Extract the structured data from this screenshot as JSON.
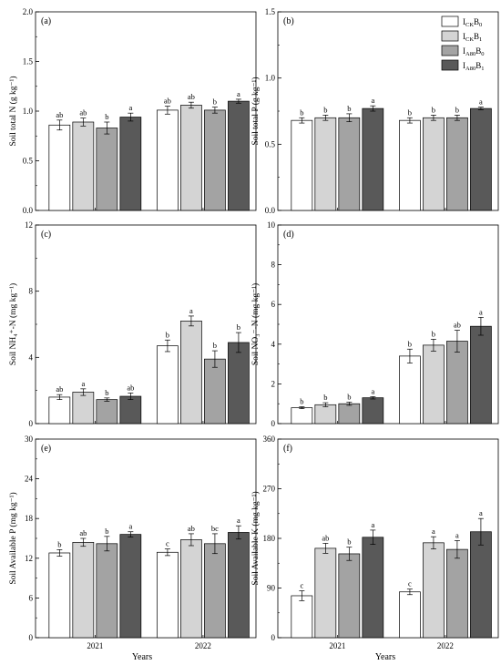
{
  "colors": [
    "#ffffff",
    "#d4d4d4",
    "#a3a3a3",
    "#595959"
  ],
  "legend": {
    "labels": [
      {
        "main": "I",
        "sub": "CK",
        "main2": "B",
        "sub2": "0"
      },
      {
        "main": "I",
        "sub": "CK",
        "main2": "B",
        "sub2": "1"
      },
      {
        "main": "I",
        "sub": "A80",
        "main2": "B",
        "sub2": "0"
      },
      {
        "main": "I",
        "sub": "A80",
        "main2": "B",
        "sub2": "1"
      }
    ]
  },
  "x_axis_title": "Years",
  "chart_data": [
    {
      "type": "bar",
      "panel_label": "(a)",
      "ylabel": "Soil total N (g kg⁻¹)",
      "ylim": [
        0,
        2.0
      ],
      "yticks": [
        "0.0",
        "0.5",
        "1.0",
        "1.5",
        "2.0"
      ],
      "categories": [
        "2021",
        "2022"
      ],
      "series": [
        {
          "values": [
            0.86,
            1.01
          ],
          "errors": [
            0.05,
            0.04
          ],
          "letters": [
            "ab",
            "ab"
          ]
        },
        {
          "values": [
            0.89,
            1.06
          ],
          "errors": [
            0.04,
            0.03
          ],
          "letters": [
            "ab",
            "ab"
          ]
        },
        {
          "values": [
            0.83,
            1.01
          ],
          "errors": [
            0.06,
            0.03
          ],
          "letters": [
            "b",
            "b"
          ]
        },
        {
          "values": [
            0.94,
            1.1
          ],
          "errors": [
            0.04,
            0.02
          ],
          "letters": [
            "a",
            "a"
          ]
        }
      ]
    },
    {
      "type": "bar",
      "panel_label": "(b)",
      "ylabel": "Soil total P (g kg⁻¹)",
      "ylim": [
        0,
        1.5
      ],
      "yticks": [
        "0.0",
        "0.5",
        "1.0",
        "1.5"
      ],
      "categories": [
        "2021",
        "2022"
      ],
      "series": [
        {
          "values": [
            0.68,
            0.68
          ],
          "errors": [
            0.02,
            0.02
          ],
          "letters": [
            "b",
            "b"
          ]
        },
        {
          "values": [
            0.7,
            0.7
          ],
          "errors": [
            0.02,
            0.02
          ],
          "letters": [
            "b",
            "b"
          ]
        },
        {
          "values": [
            0.7,
            0.7
          ],
          "errors": [
            0.03,
            0.02
          ],
          "letters": [
            "b",
            "b"
          ]
        },
        {
          "values": [
            0.77,
            0.77
          ],
          "errors": [
            0.02,
            0.01
          ],
          "letters": [
            "a",
            "a"
          ]
        }
      ]
    },
    {
      "type": "bar",
      "panel_label": "(c)",
      "ylabel": "Soil NH₄⁺-N (mg kg⁻¹)",
      "ylim": [
        0,
        12
      ],
      "yticks": [
        "0",
        "4",
        "8",
        "12"
      ],
      "categories": [
        "2021",
        "2022"
      ],
      "series": [
        {
          "values": [
            1.6,
            4.7
          ],
          "errors": [
            0.15,
            0.35
          ],
          "letters": [
            "ab",
            "b"
          ]
        },
        {
          "values": [
            1.9,
            6.2
          ],
          "errors": [
            0.2,
            0.3
          ],
          "letters": [
            "a",
            "a"
          ]
        },
        {
          "values": [
            1.45,
            3.9
          ],
          "errors": [
            0.1,
            0.5
          ],
          "letters": [
            "b",
            "b"
          ]
        },
        {
          "values": [
            1.65,
            4.9
          ],
          "errors": [
            0.2,
            0.6
          ],
          "letters": [
            "ab",
            "b"
          ]
        }
      ]
    },
    {
      "type": "bar",
      "panel_label": "(d)",
      "ylabel": "Soil NO₃⁻-N (mg kg⁻¹)",
      "ylim": [
        0,
        10
      ],
      "yticks": [
        "0",
        "2",
        "4",
        "6",
        "8",
        "10"
      ],
      "categories": [
        "2021",
        "2022"
      ],
      "series": [
        {
          "values": [
            0.8,
            3.4
          ],
          "errors": [
            0.05,
            0.35
          ],
          "letters": [
            "b",
            "b"
          ]
        },
        {
          "values": [
            0.95,
            3.95
          ],
          "errors": [
            0.1,
            0.3
          ],
          "letters": [
            "b",
            "b"
          ]
        },
        {
          "values": [
            1.0,
            4.15
          ],
          "errors": [
            0.08,
            0.55
          ],
          "letters": [
            "b",
            "ab"
          ]
        },
        {
          "values": [
            1.3,
            4.9
          ],
          "errors": [
            0.06,
            0.45
          ],
          "letters": [
            "a",
            "a"
          ]
        }
      ]
    },
    {
      "type": "bar",
      "panel_label": "(e)",
      "ylabel": "Soil Available P (mg kg⁻¹)",
      "ylim": [
        0,
        30
      ],
      "yticks": [
        "0",
        "6",
        "12",
        "18",
        "24",
        "30"
      ],
      "categories": [
        "2021",
        "2022"
      ],
      "series": [
        {
          "values": [
            12.8,
            12.9
          ],
          "errors": [
            0.5,
            0.5
          ],
          "letters": [
            "b",
            "c"
          ]
        },
        {
          "values": [
            14.4,
            14.8
          ],
          "errors": [
            0.6,
            0.9
          ],
          "letters": [
            "ab",
            "ab"
          ]
        },
        {
          "values": [
            14.2,
            14.2
          ],
          "errors": [
            1.1,
            1.5
          ],
          "letters": [
            "b",
            "bc"
          ]
        },
        {
          "values": [
            15.6,
            15.9
          ],
          "errors": [
            0.4,
            1.0
          ],
          "letters": [
            "a",
            "a"
          ]
        }
      ]
    },
    {
      "type": "bar",
      "panel_label": "(f)",
      "ylabel": "Soil Available K (mg kg⁻¹)",
      "ylim": [
        0,
        360
      ],
      "yticks": [
        "0",
        "90",
        "180",
        "270",
        "360"
      ],
      "categories": [
        "2021",
        "2022"
      ],
      "series": [
        {
          "values": [
            76,
            83
          ],
          "errors": [
            9,
            5
          ],
          "letters": [
            "c",
            "c"
          ]
        },
        {
          "values": [
            162,
            172
          ],
          "errors": [
            9,
            11
          ],
          "letters": [
            "ab",
            "a"
          ]
        },
        {
          "values": [
            152,
            160
          ],
          "errors": [
            12,
            16
          ],
          "letters": [
            "b",
            "a"
          ]
        },
        {
          "values": [
            182,
            192
          ],
          "errors": [
            13,
            24
          ],
          "letters": [
            "a",
            "a"
          ]
        }
      ]
    }
  ]
}
